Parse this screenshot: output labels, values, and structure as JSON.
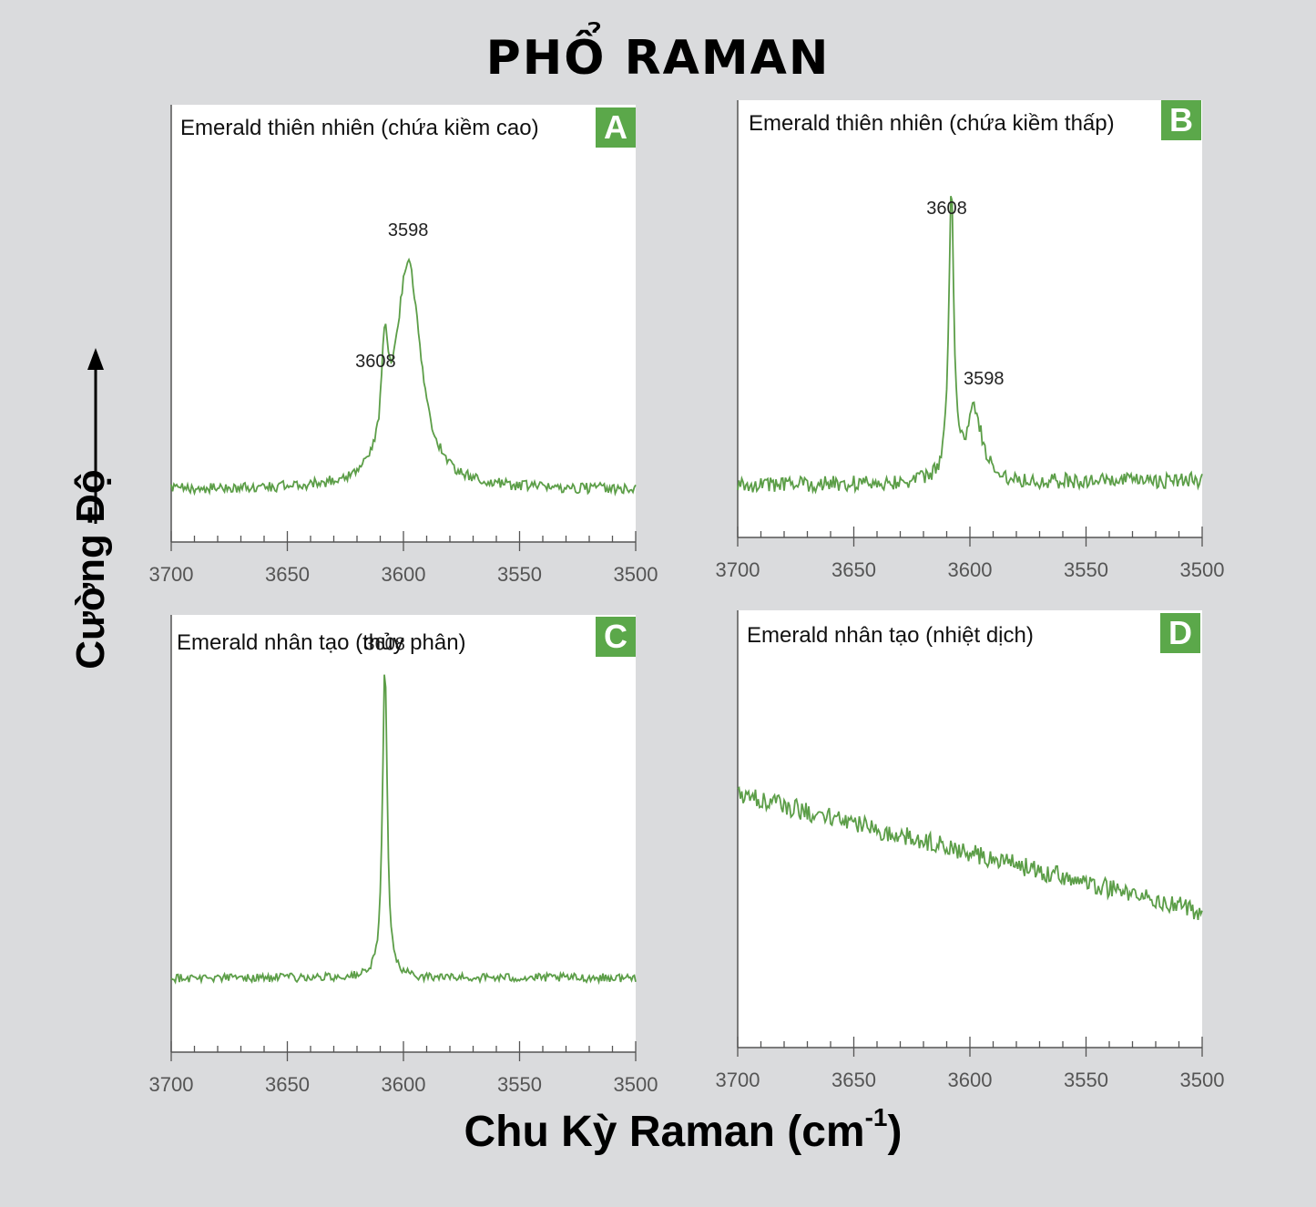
{
  "title": "PHỔ RAMAN",
  "ylabel": "Cường Độ",
  "xlabel": {
    "text": "Chu Kỳ Raman (cm",
    "sup": "-1",
    "close": ")"
  },
  "colors": {
    "line": "#5c9e48",
    "badge": "#5ba84a",
    "axis": "#555555",
    "panel_bg": "#ffffff"
  },
  "chart_data": [
    {
      "type": "line",
      "panel": "A",
      "title": "Emerald thiên nhiên (chứa kiềm cao)",
      "xlim": [
        3700,
        3500
      ],
      "xticks": [
        3700,
        3650,
        3600,
        3550,
        3500
      ],
      "ylim": [
        0,
        1
      ],
      "baseline": [
        0.12,
        0.12
      ],
      "noise": 0.012,
      "peaks": [
        {
          "x": 3608,
          "height": 0.23,
          "width": 1.6
        },
        {
          "x": 3598,
          "height": 0.52,
          "width": 6.5
        }
      ],
      "annotations": [
        {
          "text": "3598",
          "x": 3598,
          "y": 0.7
        },
        {
          "text": "3608",
          "x": 3612,
          "y": 0.4
        }
      ]
    },
    {
      "type": "line",
      "panel": "B",
      "title": "Emerald thiên nhiên (chứa kiềm thấp)",
      "xlim": [
        3700,
        3500
      ],
      "xticks": [
        3700,
        3650,
        3600,
        3550,
        3500
      ],
      "ylim": [
        0,
        1
      ],
      "baseline": [
        0.12,
        0.13
      ],
      "noise": 0.018,
      "peaks": [
        {
          "x": 3608,
          "height": 0.66,
          "width": 1.3
        },
        {
          "x": 3598,
          "height": 0.16,
          "width": 4.0
        }
      ],
      "annotations": [
        {
          "text": "3608",
          "x": 3610,
          "y": 0.74
        },
        {
          "text": "3598",
          "x": 3594,
          "y": 0.35
        }
      ]
    },
    {
      "type": "line",
      "panel": "C",
      "title": "Emerald nhân tạo (thủy phân)",
      "xlim": [
        3700,
        3500
      ],
      "xticks": [
        3700,
        3650,
        3600,
        3550,
        3500
      ],
      "ylim": [
        0,
        1
      ],
      "baseline": [
        0.17,
        0.17
      ],
      "noise": 0.01,
      "peaks": [
        {
          "x": 3608,
          "height": 0.73,
          "width": 1.2
        }
      ],
      "annotations": [
        {
          "text": "3608",
          "x": 3608,
          "y": 0.92
        }
      ]
    },
    {
      "type": "line",
      "panel": "D",
      "title": "Emerald nhân tạo (nhiệt dịch)",
      "xlim": [
        3700,
        3500
      ],
      "xticks": [
        3700,
        3650,
        3600,
        3550,
        3500
      ],
      "ylim": [
        0,
        1
      ],
      "baseline": [
        0.58,
        0.31
      ],
      "noise": 0.022,
      "peaks": [],
      "annotations": []
    }
  ]
}
